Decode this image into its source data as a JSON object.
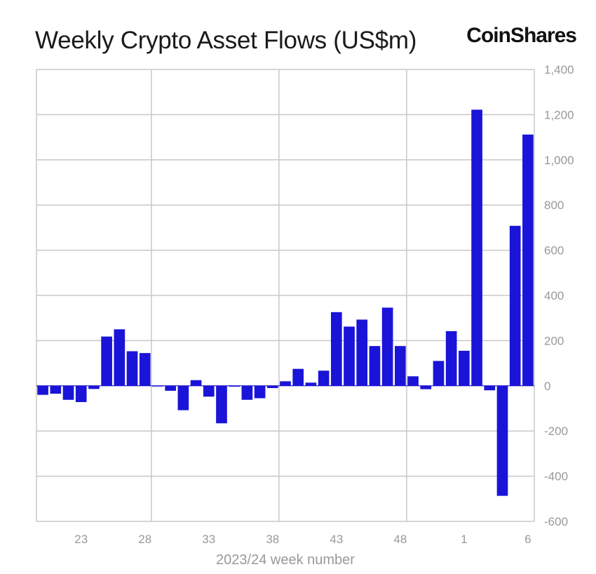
{
  "header": {
    "title": "Weekly Crypto Asset Flows (US$m)",
    "brand": "CoinShares"
  },
  "colors": {
    "bar": "#1a14d8",
    "grid": "#c8c8c8",
    "text": "#999999"
  },
  "chart_data": {
    "type": "bar",
    "title": "Weekly Crypto Asset Flows (US$m)",
    "xlabel": "2023/24 week number",
    "ylabel": "",
    "ylim": [
      -600,
      1400
    ],
    "yticks": [
      1400,
      1200,
      1000,
      800,
      600,
      400,
      200,
      0,
      -200,
      -400,
      -600
    ],
    "ytick_labels": [
      "1,400",
      "1,200",
      "1,000",
      "800",
      "600",
      "400",
      "200",
      "0",
      "-200",
      "-400",
      "-600"
    ],
    "xtick_labels": [
      "23",
      "28",
      "33",
      "38",
      "43",
      "48",
      "1",
      "6"
    ],
    "categories": [
      "20",
      "21",
      "22",
      "23",
      "24",
      "25",
      "26",
      "27",
      "28",
      "29",
      "30",
      "31",
      "32",
      "33",
      "34",
      "35",
      "36",
      "37",
      "38",
      "39",
      "40",
      "41",
      "42",
      "43",
      "44",
      "45",
      "46",
      "47",
      "48",
      "49",
      "50",
      "51",
      "52",
      "1",
      "2",
      "3",
      "4",
      "5",
      "6"
    ],
    "values": [
      -40,
      -35,
      -62,
      -72,
      -14,
      218,
      250,
      153,
      145,
      -3,
      -22,
      -108,
      25,
      -48,
      -166,
      -4,
      -62,
      -55,
      -10,
      20,
      75,
      14,
      67,
      326,
      262,
      293,
      176,
      346,
      176,
      42,
      -15,
      110,
      242,
      155,
      1222,
      -20,
      -487,
      708,
      1112
    ],
    "grid": true
  }
}
